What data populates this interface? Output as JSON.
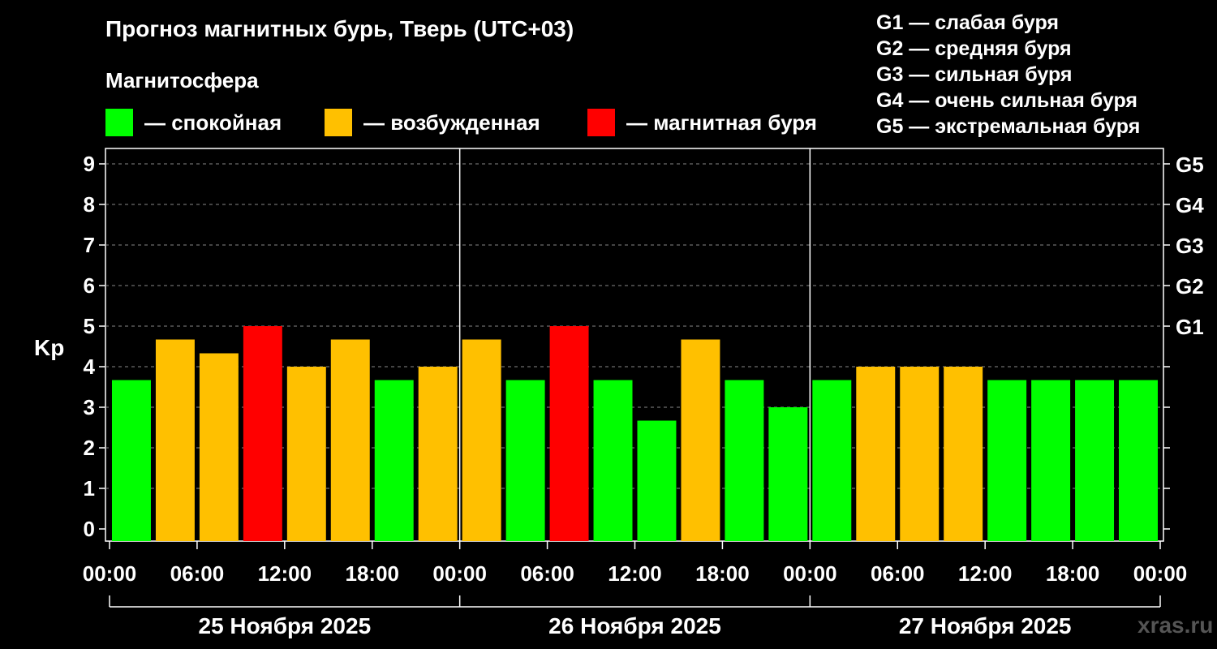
{
  "title": "Прогноз магнитных бурь, Тверь (UTC+03)",
  "magnetosphere_label": "Магнитосфера",
  "legend": [
    {
      "color": "#00ff00",
      "label": "— спокойная"
    },
    {
      "color": "#ffc000",
      "label": "— возбужденная"
    },
    {
      "color": "#ff0000",
      "label": "— магнитная буря"
    }
  ],
  "g_scale": [
    "G1 — слабая буря",
    "G2 — средняя буря",
    "G3 — сильная буря",
    "G4 — очень сильная буря",
    "G5 — экстремальная буря"
  ],
  "watermark": "xras.ru",
  "chart_data": {
    "type": "bar",
    "ylabel": "Kp",
    "ylim": [
      0,
      9
    ],
    "yticks": [
      "0",
      "1",
      "2",
      "3",
      "4",
      "5",
      "6",
      "7",
      "8",
      "9"
    ],
    "right_ticks": [
      {
        "value": 5,
        "label": "G1"
      },
      {
        "value": 6,
        "label": "G2"
      },
      {
        "value": 7,
        "label": "G3"
      },
      {
        "value": 8,
        "label": "G4"
      },
      {
        "value": 9,
        "label": "G5"
      }
    ],
    "x_tick_labels": [
      "00:00",
      "06:00",
      "12:00",
      "18:00",
      "00:00",
      "06:00",
      "12:00",
      "18:00",
      "00:00",
      "06:00",
      "12:00",
      "18:00",
      "00:00"
    ],
    "days": [
      "25 Ноября 2025",
      "26 Ноября 2025",
      "27 Ноября 2025"
    ],
    "hours_per_bar": 3,
    "values": [
      3.67,
      4.67,
      4.33,
      5.0,
      4.0,
      4.67,
      3.67,
      4.0,
      4.67,
      3.67,
      5.0,
      3.67,
      2.67,
      4.67,
      3.67,
      3.0,
      3.67,
      4.0,
      4.0,
      4.0,
      3.67,
      3.67,
      3.67,
      3.67
    ],
    "colors": {
      "quiet": "#00ff00",
      "active": "#ffc000",
      "storm": "#ff0000"
    },
    "grid": "dashed horizontal"
  }
}
